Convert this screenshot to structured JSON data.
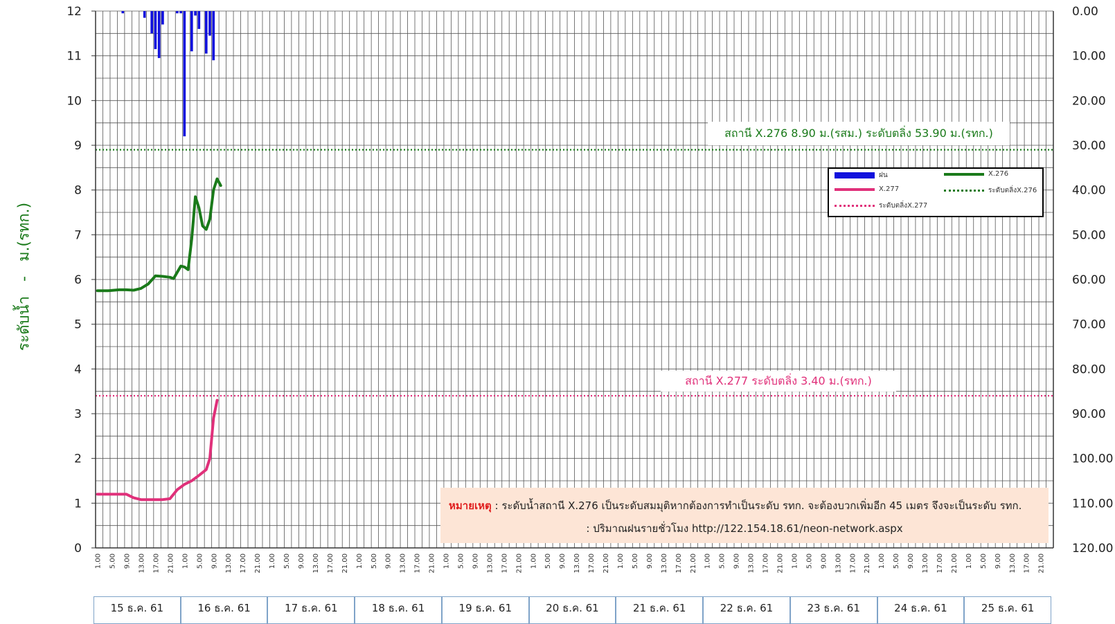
{
  "chart_data": {
    "type": "line",
    "title": "",
    "ylabel_left": "ระดับน้ำ   -   ม.(รทก.)",
    "ylim_left": [
      0,
      12
    ],
    "y_ticks_left": [
      "0",
      "1",
      "2",
      "3",
      "4",
      "5",
      "6",
      "7",
      "8",
      "9",
      "10",
      "11",
      "12"
    ],
    "ylim_right": [
      0,
      120
    ],
    "y_ticks_right": [
      "0.00",
      "10.00",
      "20.00",
      "30.00",
      "40.00",
      "50.00",
      "60.00",
      "70.00",
      "80.00",
      "90.00",
      "100.00",
      "110.00",
      "120.00"
    ],
    "right_axis_reversed": true,
    "grid": true,
    "days": [
      "15 ธ.ค. 61",
      "16 ธ.ค. 61",
      "17 ธ.ค. 61",
      "18 ธ.ค. 61",
      "19 ธ.ค. 61",
      "20 ธ.ค. 61",
      "21 ธ.ค. 61",
      "22 ธ.ค. 61",
      "23 ธ.ค. 61",
      "24 ธ.ค. 61",
      "25 ธ.ค. 61"
    ],
    "hour_ticks": [
      "1.00",
      "5.00",
      "9.00",
      "13.00",
      "17.00",
      "21.00"
    ],
    "series": [
      {
        "name": "X.276",
        "color": "#1a7a1a",
        "points": [
          [
            1,
            5.75
          ],
          [
            4,
            5.75
          ],
          [
            7,
            5.77
          ],
          [
            9,
            5.77
          ],
          [
            11,
            5.76
          ],
          [
            13,
            5.8
          ],
          [
            15,
            5.9
          ],
          [
            17,
            6.08
          ],
          [
            19,
            6.07
          ],
          [
            21,
            6.05
          ],
          [
            22,
            6.02
          ],
          [
            24,
            6.3
          ],
          [
            25,
            6.28
          ],
          [
            26,
            6.22
          ],
          [
            27,
            6.9
          ],
          [
            28,
            7.85
          ],
          [
            29,
            7.6
          ],
          [
            30,
            7.2
          ],
          [
            31,
            7.12
          ],
          [
            32,
            7.35
          ],
          [
            33,
            8.0
          ],
          [
            34,
            8.25
          ],
          [
            35,
            8.1
          ]
        ]
      },
      {
        "name": "X.277",
        "color": "#e0307a",
        "points": [
          [
            1,
            1.2
          ],
          [
            4,
            1.2
          ],
          [
            7,
            1.2
          ],
          [
            9,
            1.2
          ],
          [
            11,
            1.12
          ],
          [
            13,
            1.08
          ],
          [
            15,
            1.08
          ],
          [
            17,
            1.08
          ],
          [
            19,
            1.08
          ],
          [
            21,
            1.1
          ],
          [
            23,
            1.3
          ],
          [
            25,
            1.42
          ],
          [
            27,
            1.5
          ],
          [
            29,
            1.62
          ],
          [
            31,
            1.75
          ],
          [
            32,
            2.0
          ],
          [
            33,
            2.9
          ],
          [
            34,
            3.3
          ]
        ]
      }
    ],
    "rain_series": {
      "name": "ฝน",
      "color": "#1111dd",
      "bars": [
        [
          8,
          0.5
        ],
        [
          14,
          1.5
        ],
        [
          16,
          5.0
        ],
        [
          17,
          8.5
        ],
        [
          18,
          10.5
        ],
        [
          19,
          3.0
        ],
        [
          23,
          0.5
        ],
        [
          24,
          0.5
        ],
        [
          25,
          28.0
        ],
        [
          27,
          9.0
        ],
        [
          28,
          1.0
        ],
        [
          29,
          4.0
        ],
        [
          31,
          9.5
        ],
        [
          32,
          5.5
        ],
        [
          33,
          11.0
        ]
      ]
    },
    "reference_lines": [
      {
        "name": "ระดับตลิ่งX.276",
        "value": 8.9,
        "color": "#1a7a1a",
        "label": "สถานี X.276  8.90 ม.(รสม.) ระดับตลิ่ง 53.90 ม.(รทก.)"
      },
      {
        "name": "ระดับตลิ่งX.277",
        "value": 3.4,
        "color": "#e0307a",
        "label": "สถานี X.277 ระดับตลิ่ง 3.40 ม.(รทก.)"
      }
    ],
    "legend_position": "top-right"
  },
  "legend": {
    "rain": "ฝน",
    "x276": "X.276",
    "x277": "X.277",
    "bank276": "ระดับตลิ่งX.276",
    "bank277": "ระดับตลิ่งX.277"
  },
  "note": {
    "label": "หมายเหตุ",
    "line1": " : ระดับน้ำสถานี X.276  เป็นระดับสมมุติหากต้องการทำเป็นระดับ รทก. จะต้องบวกเพิ่มอีก 45 เมตร จึงจะเป็นระดับ รทก.",
    "line2": ": ปริมาณฝนรายชั่วโมง http://122.154.18.61/neon-network.aspx"
  }
}
